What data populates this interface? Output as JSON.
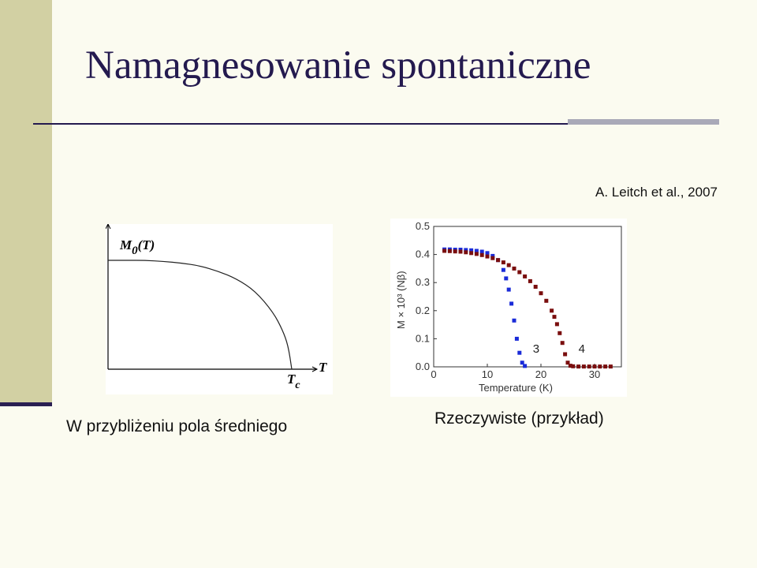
{
  "slide": {
    "title": "Namagnesowanie spontaniczne",
    "citation": "A. Leitch et al., 2007",
    "caption_left": "W przybliżeniu pola średniego",
    "caption_right": "Rzeczywiste (przykład)"
  },
  "chart_data": [
    {
      "type": "line",
      "title": "",
      "ylabel": "M",
      "ylabel_sub": "0",
      "ylabel_suffix": "(T)",
      "xlabel": "T",
      "x_marker_label": "T",
      "x_marker_sub": "c",
      "x": [
        0,
        0.1,
        0.2,
        0.3,
        0.4,
        0.5,
        0.6,
        0.7,
        0.8,
        0.9,
        0.95,
        0.98,
        1.0
      ],
      "series": [
        {
          "values": [
            1.0,
            1.0,
            1.0,
            0.99,
            0.975,
            0.95,
            0.9,
            0.83,
            0.72,
            0.52,
            0.36,
            0.22,
            0.0
          ]
        }
      ]
    },
    {
      "type": "scatter",
      "title": "",
      "xlabel": "Temperature (K)",
      "ylabel": "M × 10³ (Nβ)",
      "xlim": [
        0,
        35
      ],
      "ylim": [
        0,
        0.5
      ],
      "x_ticks": [
        "0",
        "10",
        "20",
        "30"
      ],
      "y_ticks": [
        "0.0",
        "0.1",
        "0.2",
        "0.3",
        "0.4",
        "0.5"
      ],
      "colors": {
        "series3": "#1a2bd8",
        "series4": "#7a0e0e"
      },
      "series": [
        {
          "name": "3",
          "x": [
            2,
            3,
            4,
            5,
            6,
            7,
            8,
            9,
            10,
            11,
            12,
            13,
            13.5,
            14,
            14.5,
            15,
            15.5,
            16,
            16.5,
            17
          ],
          "values": [
            0.418,
            0.418,
            0.417,
            0.417,
            0.416,
            0.415,
            0.413,
            0.41,
            0.405,
            0.395,
            0.38,
            0.345,
            0.315,
            0.275,
            0.225,
            0.165,
            0.1,
            0.05,
            0.015,
            0.003
          ]
        },
        {
          "name": "4",
          "x": [
            2,
            3,
            4,
            5,
            6,
            7,
            8,
            9,
            10,
            11,
            12,
            13,
            14,
            15,
            16,
            17,
            18,
            19,
            20,
            21,
            22,
            22.5,
            23,
            23.5,
            24,
            24.5,
            25,
            25.5,
            26,
            27,
            28,
            29,
            30,
            31,
            32,
            33
          ],
          "values": [
            0.413,
            0.412,
            0.411,
            0.41,
            0.408,
            0.405,
            0.402,
            0.398,
            0.393,
            0.387,
            0.38,
            0.372,
            0.362,
            0.35,
            0.337,
            0.322,
            0.305,
            0.285,
            0.262,
            0.235,
            0.2,
            0.178,
            0.152,
            0.12,
            0.085,
            0.045,
            0.015,
            0.004,
            0.002,
            0.001,
            0.001,
            0.001,
            0.001,
            0.001,
            0.001,
            0.001
          ]
        }
      ]
    }
  ]
}
